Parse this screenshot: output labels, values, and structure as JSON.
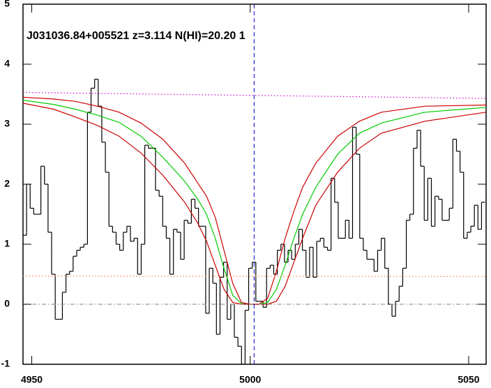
{
  "chart_data": {
    "type": "spectrum",
    "title": "J031036.84+005521 z=3.114 N(HI)=20.20 1",
    "xlim": [
      4948,
      5054
    ],
    "xticks": [
      4950,
      5000,
      5050
    ],
    "ylim": [
      -1,
      5
    ],
    "yticks": [
      -1,
      0,
      1,
      2,
      3,
      4,
      5
    ],
    "vline": {
      "value": 5000.9,
      "color": "#0000cc"
    },
    "series": [
      {
        "style": "step",
        "color": "#000000",
        "x": [
          4948.4,
          4949.22,
          4950.04,
          4950.86,
          4951.68,
          4952.5,
          4953.32,
          4954.14,
          4954.96,
          4955.78,
          4956.6,
          4957.42,
          4958.24,
          4959.06,
          4959.88,
          4960.7,
          4961.52,
          4962.34,
          4963.16,
          4963.98,
          4964.8,
          4965.62,
          4966.44,
          4967.26,
          4968.08,
          4968.9,
          4969.72,
          4970.54,
          4971.36,
          4972.18,
          4973.0,
          4973.82,
          4974.64,
          4975.46,
          4976.28,
          4977.1,
          4977.92,
          4978.74,
          4979.56,
          4980.38,
          4981.2,
          4982.02,
          4982.84,
          4983.66,
          4984.48,
          4985.3,
          4986.12,
          4986.94,
          4987.76,
          4988.58,
          4989.4,
          4990.22,
          4991.04,
          4991.86,
          4992.68,
          4993.5,
          4994.32,
          4995.14,
          4995.96,
          4996.78,
          4997.6,
          4998.42,
          4999.24,
          5000.06,
          5000.88,
          5001.7,
          5002.52,
          5003.34,
          5004.16,
          5004.98,
          5005.8,
          5006.62,
          5007.44,
          5008.26,
          5009.08,
          5009.9,
          5010.72,
          5011.54,
          5012.36,
          5013.18,
          5014.0,
          5014.82,
          5015.64,
          5016.46,
          5017.28,
          5018.1,
          5018.92,
          5019.74,
          5020.56,
          5021.38,
          5022.2,
          5023.02,
          5023.84,
          5024.66,
          5025.48,
          5026.3,
          5027.12,
          5027.94,
          5028.76,
          5029.58,
          5030.4,
          5031.22,
          5032.04,
          5032.86,
          5033.68,
          5034.5,
          5035.32,
          5036.14,
          5036.96,
          5037.78,
          5038.6,
          5039.42,
          5040.24,
          5041.06,
          5041.88,
          5042.7,
          5043.52,
          5044.34,
          5045.16,
          5045.98,
          5046.8,
          5047.62,
          5048.44,
          5049.26,
          5050.08,
          5050.9,
          5051.72,
          5052.54,
          5053.36
        ],
        "values": [
          1.15,
          2.0,
          1.6,
          1.5,
          1.5,
          2.3,
          2.0,
          1.2,
          0.5,
          -0.25,
          -0.25,
          0.2,
          0.5,
          0.55,
          0.8,
          0.9,
          0.95,
          1.0,
          3.2,
          3.6,
          3.75,
          3.3,
          2.7,
          2.2,
          1.3,
          1.2,
          1.0,
          0.9,
          1.2,
          1.3,
          1.05,
          1.1,
          0.5,
          1.0,
          2.65,
          2.6,
          2.6,
          1.9,
          1.8,
          1.3,
          1.1,
          0.5,
          1.25,
          1.2,
          0.75,
          1.4,
          1.35,
          1.75,
          1.6,
          1.3,
          1.3,
          -0.15,
          0.6,
          0.35,
          -0.5,
          0.45,
          0.7,
          -0.25,
          0.0,
          -0.55,
          -0.7,
          -1.0,
          -0.1,
          0.6,
          0.7,
          0.05,
          0.05,
          -0.05,
          0.6,
          0.65,
          0.5,
          0.9,
          1.0,
          0.7,
          0.9,
          0.75,
          1.0,
          1.25,
          0.9,
          0.45,
          0.95,
          0.45,
          1.05,
          1.1,
          0.95,
          0.9,
          2.1,
          1.7,
          1.1,
          1.1,
          1.4,
          1.1,
          2.95,
          2.5,
          1.1,
          0.9,
          0.75,
          0.75,
          0.55,
          0.9,
          1.1,
          0.6,
          0.0,
          -0.2,
          0.05,
          0.3,
          0.6,
          1.4,
          1.5,
          2.6,
          2.9,
          2.3,
          1.4,
          2.1,
          1.3,
          1.8,
          1.75,
          1.4,
          1.4,
          1.6,
          2.75,
          2.55,
          2.2,
          1.1,
          1.2,
          1.3,
          1.65,
          1.25,
          1.7
        ]
      },
      {
        "style": "line",
        "color": "#00cc00",
        "x": [
          4948,
          4955,
          4960,
          4965,
          4970,
          4975,
          4980,
          4985,
          4988,
          4990,
          4992,
          4994,
          4996,
          4998,
          5000,
          5002,
          5004,
          5006,
          5008,
          5010,
          5012,
          5015,
          5020,
          5025,
          5030,
          5040,
          5054
        ],
        "values": [
          3.4,
          3.33,
          3.25,
          3.15,
          3.03,
          2.8,
          2.45,
          2.05,
          1.75,
          1.5,
          1.1,
          0.6,
          0.15,
          0.01,
          0,
          0,
          0.03,
          0.25,
          0.65,
          1.1,
          1.5,
          1.95,
          2.5,
          2.85,
          3.02,
          3.2,
          3.28
        ]
      },
      {
        "style": "line",
        "color": "#cc0000",
        "x": [
          4948,
          4955,
          4960,
          4965,
          4970,
          4975,
          4980,
          4985,
          4988,
          4990,
          4992,
          4994,
          4996,
          4998,
          5000,
          5002,
          5004,
          5006,
          5008,
          5010,
          5012,
          5015,
          5020,
          5025,
          5030,
          5040,
          5054
        ],
        "values": [
          3.35,
          3.25,
          3.12,
          2.98,
          2.8,
          2.52,
          2.15,
          1.7,
          1.35,
          1.05,
          0.65,
          0.25,
          0.03,
          0,
          0,
          0,
          0,
          0.05,
          0.3,
          0.7,
          1.1,
          1.65,
          2.2,
          2.6,
          2.85,
          3.05,
          3.2
        ]
      },
      {
        "style": "line",
        "color": "#cc0000",
        "x": [
          4948,
          4955,
          4960,
          4965,
          4970,
          4975,
          4980,
          4985,
          4988,
          4990,
          4992,
          4994,
          4996,
          4998,
          5000,
          5002,
          5004,
          5006,
          5008,
          5010,
          5012,
          5015,
          5020,
          5025,
          5030,
          5040,
          5054
        ],
        "values": [
          3.45,
          3.42,
          3.38,
          3.3,
          3.2,
          3.02,
          2.75,
          2.35,
          2.02,
          1.8,
          1.45,
          0.9,
          0.35,
          0.03,
          0,
          0,
          0.1,
          0.55,
          1.1,
          1.55,
          1.95,
          2.35,
          2.8,
          3.05,
          3.2,
          3.3,
          3.32
        ]
      },
      {
        "style": "dotted",
        "color": "#cc00cc",
        "x": [
          4948,
          5054
        ],
        "values": [
          3.53,
          3.43
        ]
      },
      {
        "style": "dotted",
        "color": "#ff8844",
        "x": [
          4948,
          5054
        ],
        "values": [
          0.47,
          0.46
        ]
      },
      {
        "style": "dashdot",
        "color": "#999999",
        "x": [
          4948,
          5054
        ],
        "values": [
          0,
          0
        ]
      }
    ]
  }
}
